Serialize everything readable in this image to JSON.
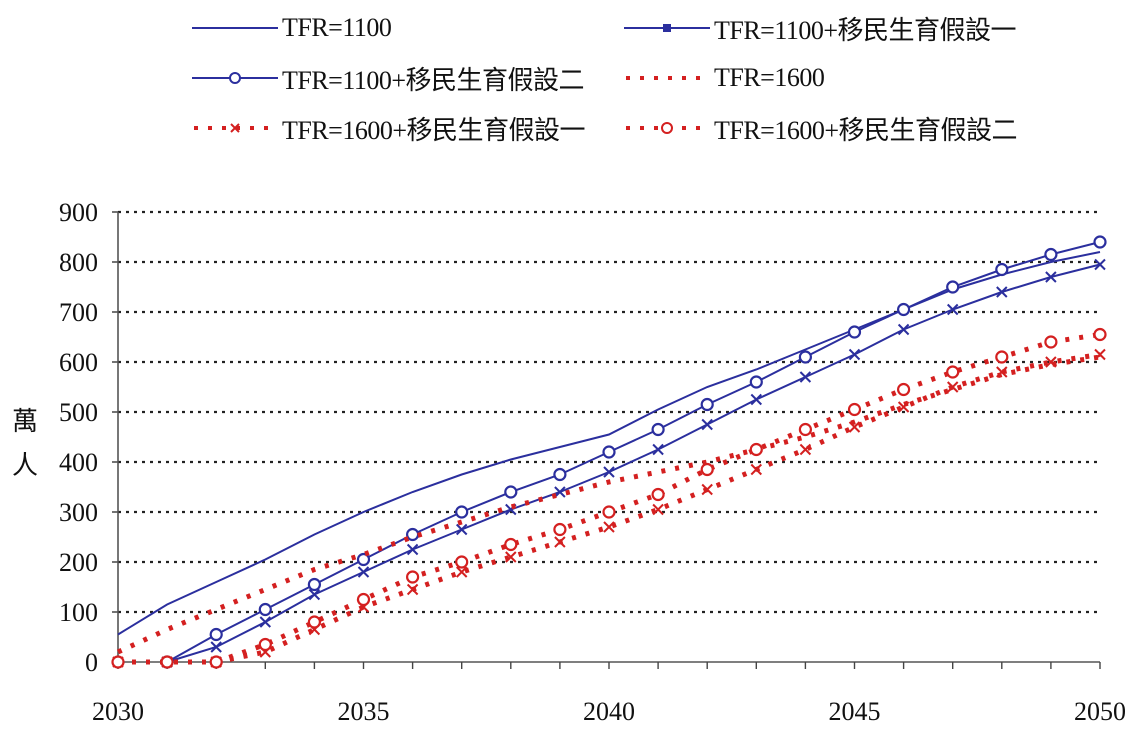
{
  "chart_data": {
    "type": "line",
    "title": "",
    "xlabel": "",
    "ylabel": [
      "萬",
      "人"
    ],
    "xlim": [
      2030,
      2050
    ],
    "ylim": [
      0,
      900
    ],
    "xticks": [
      "2030",
      "2035",
      "2040",
      "2045",
      "2050"
    ],
    "yticks": [
      "0",
      "100",
      "200",
      "300",
      "400",
      "500",
      "600",
      "700",
      "800",
      "900"
    ],
    "grid": "horizontal dotted",
    "legend_position": "top",
    "series": [
      {
        "name": "TFR=1100",
        "color": "#2b2f9e",
        "style": "solid",
        "marker": "none",
        "x": [
          2030,
          2031,
          2032,
          2033,
          2034,
          2035,
          2036,
          2037,
          2038,
          2039,
          2040,
          2041,
          2042,
          2043,
          2044,
          2045,
          2046,
          2047,
          2048,
          2049,
          2050
        ],
        "values": [
          55,
          115,
          160,
          205,
          255,
          300,
          340,
          375,
          405,
          430,
          455,
          505,
          550,
          585,
          625,
          665,
          705,
          745,
          775,
          800,
          820
        ]
      },
      {
        "name": "TFR=1100+移民生育假設一",
        "color": "#2b2f9e",
        "style": "solid",
        "marker": "x",
        "x": [
          2031,
          2032,
          2033,
          2034,
          2035,
          2036,
          2037,
          2038,
          2039,
          2040,
          2041,
          2042,
          2043,
          2044,
          2045,
          2046,
          2047,
          2048,
          2049,
          2050
        ],
        "values": [
          0,
          30,
          80,
          135,
          180,
          225,
          265,
          305,
          340,
          380,
          425,
          475,
          525,
          570,
          615,
          665,
          705,
          740,
          770,
          795
        ]
      },
      {
        "name": "TFR=1100+移民生育假設二",
        "color": "#2b2f9e",
        "style": "solid",
        "marker": "circle",
        "x": [
          2031,
          2032,
          2033,
          2034,
          2035,
          2036,
          2037,
          2038,
          2039,
          2040,
          2041,
          2042,
          2043,
          2044,
          2045,
          2046,
          2047,
          2048,
          2049,
          2050
        ],
        "values": [
          0,
          55,
          105,
          155,
          205,
          255,
          300,
          340,
          375,
          420,
          465,
          515,
          560,
          610,
          660,
          705,
          750,
          785,
          815,
          840
        ]
      },
      {
        "name": "TFR=1600",
        "color": "#d42020",
        "style": "dotted",
        "marker": "none",
        "x": [
          2030,
          2031,
          2032,
          2033,
          2034,
          2035,
          2036,
          2037,
          2038,
          2039,
          2040,
          2041,
          2042,
          2043,
          2044,
          2045,
          2046,
          2047,
          2048,
          2049,
          2050
        ],
        "values": [
          20,
          65,
          105,
          145,
          185,
          215,
          250,
          280,
          310,
          335,
          360,
          380,
          400,
          425,
          450,
          480,
          515,
          545,
          575,
          595,
          610
        ]
      },
      {
        "name": "TFR=1600+移民生育假設一",
        "color": "#d42020",
        "style": "dotted",
        "marker": "x",
        "x": [
          2030,
          2031,
          2032,
          2033,
          2034,
          2035,
          2036,
          2037,
          2038,
          2039,
          2040,
          2041,
          2042,
          2043,
          2044,
          2045,
          2046,
          2047,
          2048,
          2049,
          2050
        ],
        "values": [
          0,
          0,
          0,
          20,
          65,
          110,
          145,
          180,
          210,
          240,
          270,
          305,
          345,
          385,
          425,
          470,
          510,
          550,
          580,
          600,
          615
        ]
      },
      {
        "name": "TFR=1600+移民生育假設二",
        "color": "#d42020",
        "style": "dotted",
        "marker": "circle",
        "x": [
          2030,
          2031,
          2032,
          2033,
          2034,
          2035,
          2036,
          2037,
          2038,
          2039,
          2040,
          2041,
          2042,
          2043,
          2044,
          2045,
          2046,
          2047,
          2048,
          2049,
          2050
        ],
        "values": [
          0,
          0,
          0,
          35,
          80,
          125,
          170,
          200,
          235,
          265,
          300,
          335,
          385,
          425,
          465,
          505,
          545,
          580,
          610,
          640,
          655
        ]
      }
    ]
  }
}
